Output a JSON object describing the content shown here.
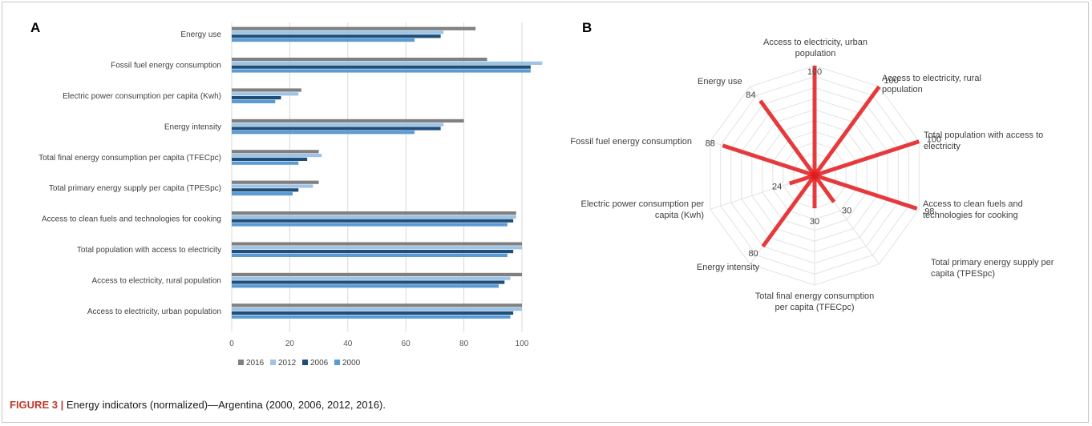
{
  "panels": {
    "a": "A",
    "b": "B"
  },
  "colors": {
    "2016": "#808080",
    "2012": "#9dc3e6",
    "2006": "#1f4e79",
    "2000": "#5b9bd5",
    "radar_spoke": "#e31a1c",
    "grid": "#d9d9d9"
  },
  "caption": {
    "label": "FIGURE 3 |",
    "text": " Energy indicators (normalized)—Argentina (2000, 2006, 2012, 2016)."
  },
  "chart_data": [
    {
      "type": "bar",
      "orientation": "horizontal",
      "title": "",
      "xlim": [
        0,
        100
      ],
      "xticks": [
        0,
        20,
        40,
        60,
        80,
        100
      ],
      "grid": true,
      "legend_position": "bottom",
      "categories": [
        "Energy use",
        "Fossil fuel energy consumption",
        "Electric power consumption per capita (Kwh)",
        "Energy intensity",
        "Total final energy consumption per capita (TFECpc)",
        "Total primary energy supply per capita (TPESpc)",
        "Access to clean fuels and technologies for cooking",
        "Total population with access to electricity",
        "Access to electricity, rural population",
        "Access to electricity, urban population"
      ],
      "series": [
        {
          "name": "2016",
          "values": [
            84,
            88,
            24,
            80,
            30,
            30,
            98,
            100,
            100,
            100
          ]
        },
        {
          "name": "2012",
          "values": [
            73,
            107,
            23,
            73,
            31,
            28,
            98,
            100,
            96,
            100
          ]
        },
        {
          "name": "2006",
          "values": [
            72,
            103,
            17,
            72,
            26,
            23,
            97,
            97,
            94,
            97
          ]
        },
        {
          "name": "2000",
          "values": [
            63,
            103,
            15,
            63,
            23,
            21,
            95,
            95,
            92,
            96
          ]
        }
      ]
    },
    {
      "type": "radar",
      "title": "",
      "rmax": 100,
      "grid": true,
      "axes": [
        "Access to electricity, urban population",
        "Access to electricity, rural population",
        "Total population with access to electricity",
        "Access to clean fuels and technologies for cooking",
        "Total primary energy supply per capita (TPESpc)",
        "Total final energy consumption per capita (TFECpc)",
        "Energy intensity",
        "Electric power consumption per capita (Kwh)",
        "Fossil fuel energy consumption",
        "Energy use"
      ],
      "axis_label_lines": [
        [
          "Access to electricity, urban",
          "population"
        ],
        [
          "Access to electricity, rural",
          "population"
        ],
        [
          "Total population with access to",
          "electricity"
        ],
        [
          "Access to clean fuels and",
          "technologies for cooking"
        ],
        [
          "Total primary energy supply per",
          "capita (TPESpc)"
        ],
        [
          "Total final energy consumption",
          "per capita (TFECpc)"
        ],
        [
          "Energy intensity"
        ],
        [
          "Electric power consumption per",
          "capita (Kwh)"
        ],
        [
          "Fossil fuel energy consumption"
        ],
        [
          "Energy use"
        ]
      ],
      "values": [
        100,
        100,
        100,
        98,
        30,
        30,
        80,
        24,
        88,
        84
      ],
      "value_labels": [
        "100",
        "100",
        "100",
        "98",
        "30",
        "30",
        "80",
        "24",
        "88",
        "84"
      ]
    }
  ]
}
